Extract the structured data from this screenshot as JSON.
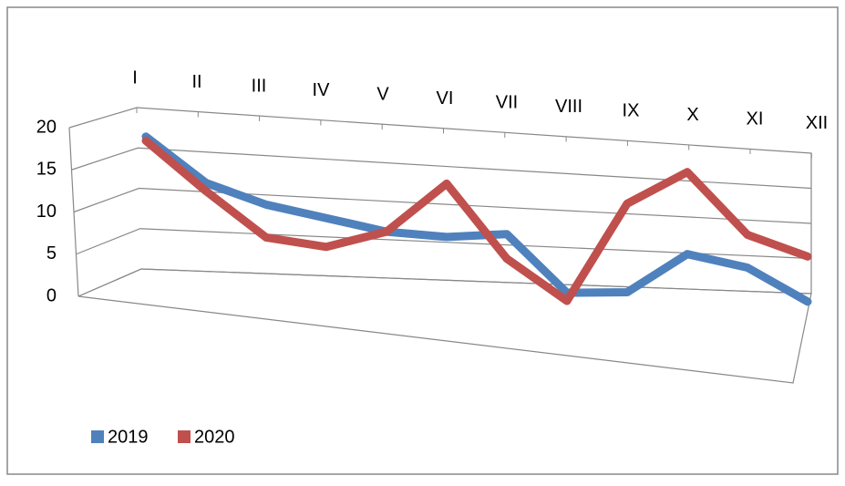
{
  "chart_data": {
    "type": "line",
    "categories": [
      "I",
      "II",
      "III",
      "IV",
      "V",
      "VI",
      "VII",
      "VIII",
      "IX",
      "X",
      "XI",
      "XII"
    ],
    "series": [
      {
        "name": "2019",
        "color": "#4f81bd",
        "values": [
          19,
          13.5,
          11,
          9.5,
          8,
          7.5,
          8,
          1,
          1.2,
          6,
          4.5,
          0.5
        ]
      },
      {
        "name": "2020",
        "color": "#c0504d",
        "values": [
          18.5,
          12.5,
          7,
          6,
          8,
          14,
          5,
          0,
          12,
          16,
          8.5,
          6
        ]
      }
    ],
    "ylim": [
      0,
      20
    ],
    "yticks": [
      0,
      5,
      10,
      15,
      20
    ],
    "grid": true,
    "legend": "bottom-left"
  }
}
